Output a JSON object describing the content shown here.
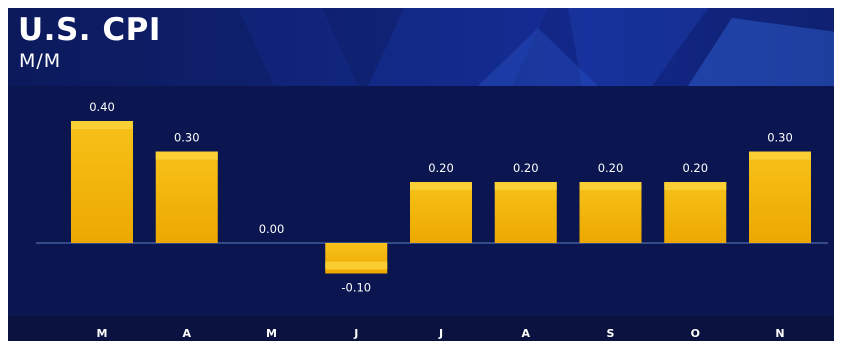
{
  "title": "U.S. CPI",
  "subtitle": "M/M",
  "colors": {
    "background": "#0b1650",
    "bar": "#f5b400",
    "bar_top": "#fcd23a",
    "baseline": "#3f5c9e",
    "text": "#ffffff"
  },
  "chart_data": {
    "type": "bar",
    "categories": [
      "M",
      "A",
      "M",
      "J",
      "J",
      "A",
      "S",
      "O",
      "N"
    ],
    "values": [
      0.4,
      0.3,
      0.0,
      -0.1,
      0.2,
      0.2,
      0.2,
      0.2,
      0.3
    ],
    "value_labels": [
      "0.40",
      "0.30",
      "0.00",
      "-0.10",
      "0.20",
      "0.20",
      "0.20",
      "0.20",
      "0.30"
    ],
    "title": "U.S. CPI",
    "subtitle": "M/M",
    "xlabel": "",
    "ylabel": "",
    "ylim": [
      -0.15,
      0.45
    ],
    "grid": false,
    "legend": "none"
  }
}
